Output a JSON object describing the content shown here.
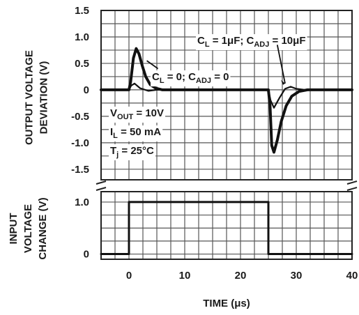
{
  "chart_data": {
    "type": "line",
    "xlabel": "TIME (μs)",
    "x_ticks": [
      0,
      10,
      20,
      30,
      40
    ],
    "xlim": [
      -5,
      40
    ],
    "grid": true,
    "top_panel": {
      "ylabel": [
        "OUTPUT VOLTAGE",
        "DEVIATION (V)"
      ],
      "y_ticks": [
        "1.5",
        "1.0",
        "0.5",
        "0",
        "-0.5",
        "-1.0",
        "-1.5"
      ],
      "ylim": [
        -1.7,
        1.5
      ],
      "series": [
        {
          "label_main": "C",
          "label_parts": [
            {
              "t": "C"
            },
            {
              "t": "L",
              "sub": true
            },
            {
              "t": " = 0; C"
            },
            {
              "t": "ADJ",
              "sub": true
            },
            {
              "t": " = 0"
            }
          ],
          "width": 4,
          "x": [
            -5,
            0,
            0.3,
            0.8,
            1.3,
            1.8,
            2.4,
            3.0,
            3.8,
            4.8,
            6.0,
            8.0,
            25,
            25.3,
            25.6,
            26.0,
            26.6,
            27.3,
            28.2,
            29.2,
            30.5,
            32.0,
            40
          ],
          "y": [
            0,
            0,
            0.15,
            0.6,
            0.78,
            0.68,
            0.45,
            0.25,
            0.1,
            0.03,
            0,
            0,
            0,
            -0.3,
            -1.05,
            -1.18,
            -0.95,
            -0.6,
            -0.3,
            -0.12,
            -0.03,
            0,
            0
          ]
        },
        {
          "label_parts": [
            {
              "t": "C"
            },
            {
              "t": "L",
              "sub": true
            },
            {
              "t": " = 1μF; C"
            },
            {
              "t": "ADJ",
              "sub": true
            },
            {
              "t": " = 10μF"
            }
          ],
          "width": 2.2,
          "x": [
            -5,
            0,
            0.4,
            1.0,
            2.0,
            3.5,
            5.0,
            25,
            25.4,
            26.0,
            27.0,
            28.0,
            29.0,
            30.0,
            31.5,
            40
          ],
          "y": [
            0,
            0,
            0.08,
            0.12,
            0.03,
            -0.02,
            0,
            0,
            -0.2,
            -0.34,
            -0.15,
            0.02,
            0.06,
            0.02,
            0,
            0
          ]
        }
      ],
      "conditions": [
        {
          "parts": [
            {
              "t": "V"
            },
            {
              "t": "OUT",
              "sub": true
            },
            {
              "t": " = 10V"
            }
          ]
        },
        {
          "parts": [
            {
              "t": "I"
            },
            {
              "t": "L",
              "sub": true
            },
            {
              "t": " = 50 mA"
            }
          ]
        },
        {
          "parts": [
            {
              "t": "T"
            },
            {
              "t": "j",
              "sub": true
            },
            {
              "t": " = 25°C"
            }
          ]
        }
      ]
    },
    "bottom_panel": {
      "ylabel": [
        "INPUT",
        "VOLTAGE",
        "CHANGE (V)"
      ],
      "y_ticks": [
        "1.0",
        "0"
      ],
      "ylim": [
        -0.1,
        1.2
      ],
      "series": [
        {
          "x": [
            -5,
            0,
            0,
            25,
            25,
            40
          ],
          "y": [
            0,
            0,
            1,
            1,
            0,
            0
          ]
        }
      ]
    }
  }
}
